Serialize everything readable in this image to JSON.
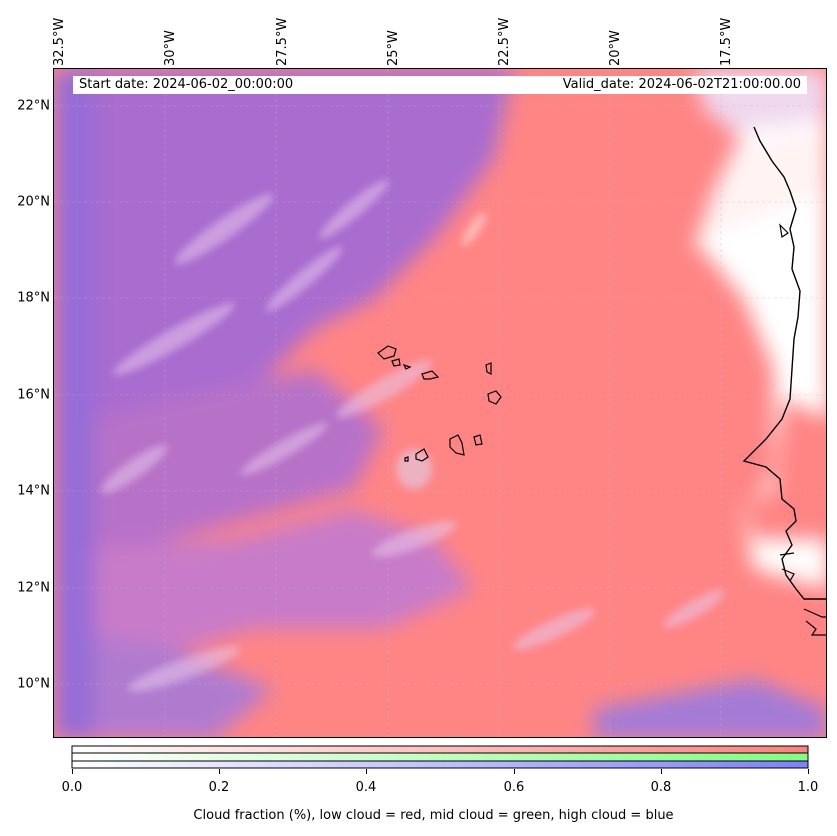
{
  "map": {
    "start_date": "Start date: 2024-06-02_00:00:00",
    "valid_date": "Valid_date: 2024-06-02T21:00:00.00",
    "lon_labels": [
      "32.5°W",
      "30°W",
      "27.5°W",
      "25°W",
      "22.5°W",
      "20°W",
      "17.5°W"
    ],
    "lat_labels": [
      "22°N",
      "20°N",
      "18°N",
      "16°N",
      "14°N",
      "12°N",
      "10°N"
    ],
    "colors": {
      "low_cloud": "#ff7f7f",
      "mid_cloud": "#7fff7f",
      "high_cloud": "#7f7fff",
      "coastline": "#000000"
    }
  },
  "colorbar": {
    "ticks": [
      "0.0",
      "0.2",
      "0.4",
      "0.6",
      "0.8",
      "1.0"
    ],
    "label": "Cloud fraction (%), low cloud = red, mid cloud = green, high cloud = blue"
  }
}
